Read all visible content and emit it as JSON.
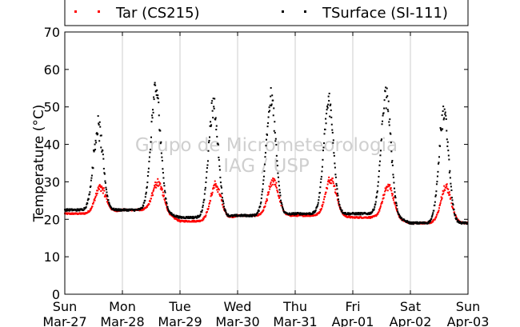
{
  "chart_data": {
    "type": "scatter",
    "title": "",
    "xlabel": "",
    "ylabel": "Temperature (°C)",
    "ylim": [
      0,
      70
    ],
    "y_ticks": [
      0,
      10,
      20,
      30,
      40,
      50,
      60,
      70
    ],
    "xlim": [
      "2016-03-27",
      "2016-04-03"
    ],
    "x_ticks": [
      {
        "day": "Sun",
        "date": "Mar-27"
      },
      {
        "day": "Mon",
        "date": "Mar-28"
      },
      {
        "day": "Tue",
        "date": "Mar-29"
      },
      {
        "day": "Wed",
        "date": "Mar-30"
      },
      {
        "day": "Thu",
        "date": "Mar-31"
      },
      {
        "day": "Fri",
        "date": "Apr-01"
      },
      {
        "day": "Sat",
        "date": "Apr-02"
      },
      {
        "day": "Sun",
        "date": "Apr-03"
      }
    ],
    "grid": "vertical",
    "legend_position": "top",
    "watermark": [
      "Grupo de Micrometeorologia",
      "IAG / USP"
    ],
    "series": [
      {
        "name": "Tar (CS215)",
        "color": "#ff0000",
        "daily": [
          {
            "date": "Mar-27",
            "min": 21.5,
            "max": 28.5
          },
          {
            "date": "Mar-28",
            "min": 22.5,
            "max": 30.0
          },
          {
            "date": "Mar-29",
            "min": 19.5,
            "max": 29.0
          },
          {
            "date": "Mar-30",
            "min": 21.0,
            "max": 30.0
          },
          {
            "date": "Mar-31",
            "min": 21.0,
            "max": 31.0
          },
          {
            "date": "Apr-01",
            "min": 20.5,
            "max": 29.0
          },
          {
            "date": "Apr-02",
            "min": 19.0,
            "max": 28.5
          }
        ]
      },
      {
        "name": "TSurface (SI-111)",
        "color": "#000000",
        "daily": [
          {
            "date": "Mar-27",
            "min": 22.5,
            "max": 44.5
          },
          {
            "date": "Mar-28",
            "min": 22.5,
            "max": 54.5
          },
          {
            "date": "Mar-29",
            "min": 20.5,
            "max": 50.0
          },
          {
            "date": "Mar-30",
            "min": 21.0,
            "max": 52.0
          },
          {
            "date": "Mar-31",
            "min": 21.5,
            "max": 51.0
          },
          {
            "date": "Apr-01",
            "min": 21.5,
            "max": 53.0
          },
          {
            "date": "Apr-02",
            "min": 19.0,
            "max": 48.0
          }
        ]
      }
    ]
  }
}
